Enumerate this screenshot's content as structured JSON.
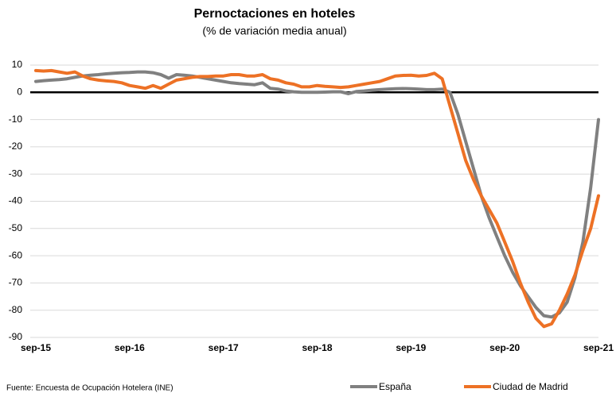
{
  "chart_data": {
    "type": "line",
    "title": "Pernoctaciones en hoteles",
    "subtitle": "(% de variación media anual)",
    "source": "Fuente: Encuesta de Ocupación Hotelera (INE)",
    "categories": [
      "sep-15",
      null,
      null,
      null,
      null,
      null,
      null,
      null,
      null,
      null,
      null,
      null,
      "sep-16",
      null,
      null,
      null,
      null,
      null,
      null,
      null,
      null,
      null,
      null,
      null,
      "sep-17",
      null,
      null,
      null,
      null,
      null,
      null,
      null,
      null,
      null,
      null,
      null,
      "sep-18",
      null,
      null,
      null,
      null,
      null,
      null,
      null,
      null,
      null,
      null,
      null,
      "sep-19",
      null,
      null,
      null,
      null,
      null,
      null,
      null,
      null,
      null,
      null,
      null,
      "sep-20",
      null,
      null,
      null,
      null,
      null,
      null,
      null,
      null,
      null,
      null,
      null,
      "sep-21"
    ],
    "series": [
      {
        "name": "España",
        "color": "#808080",
        "values": [
          4,
          4.3,
          4.5,
          4.7,
          5,
          5.5,
          6,
          6.3,
          6.5,
          6.8,
          7,
          7.2,
          7.3,
          7.5,
          7.5,
          7.2,
          6.5,
          5.2,
          6.5,
          6.3,
          6,
          5.5,
          5,
          4.5,
          4,
          3.5,
          3.2,
          3,
          2.8,
          3.5,
          1.5,
          1.2,
          0.5,
          0.2,
          0,
          0,
          0,
          0.1,
          0.2,
          0.2,
          -0.5,
          0.3,
          0.5,
          0.8,
          1,
          1.2,
          1.3,
          1.4,
          1.3,
          1.2,
          1,
          1,
          1.2,
          0,
          -8,
          -18,
          -28,
          -38,
          -46,
          -53,
          -60,
          -66,
          -71,
          -75,
          -79,
          -82,
          -82.5,
          -81,
          -77,
          -68,
          -55,
          -35,
          -10
        ]
      },
      {
        "name": "Ciudad de Madrid",
        "color": "#ed7125",
        "values": [
          8,
          7.8,
          8,
          7.5,
          7,
          7.5,
          6,
          5,
          4.5,
          4.2,
          4,
          3.5,
          2.5,
          2,
          1.5,
          2.5,
          1.5,
          3,
          4.5,
          5,
          5.5,
          5.8,
          5.8,
          6,
          6,
          6.5,
          6.5,
          6,
          6,
          6.5,
          5,
          4.5,
          3.5,
          3,
          2,
          2,
          2.5,
          2.2,
          2,
          1.8,
          2,
          2.5,
          3,
          3.5,
          4,
          5,
          6,
          6.2,
          6.3,
          6,
          6.2,
          7,
          5,
          -5,
          -15,
          -25,
          -32,
          -38,
          -43,
          -48,
          -55,
          -62,
          -70,
          -77,
          -83,
          -86,
          -85,
          -80,
          -74,
          -67,
          -58,
          -50,
          -38
        ]
      }
    ],
    "ylim": [
      -90,
      10
    ],
    "yticks": [
      10,
      0,
      -10,
      -20,
      -30,
      -40,
      -50,
      -60,
      -70,
      -80,
      -90
    ],
    "grid": true,
    "legend": "bottom"
  }
}
